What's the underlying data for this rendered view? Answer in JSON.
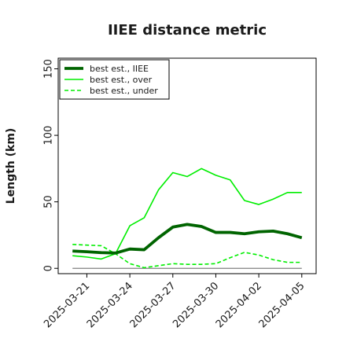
{
  "chart_data": {
    "type": "line",
    "title": "IIEE distance metric",
    "xlabel": "",
    "ylabel": "Length (km)",
    "ylim": [
      -4,
      158
    ],
    "xlim": [
      "2025-03-19",
      "2025-04-06"
    ],
    "x_ticks": [
      "2025-03-21",
      "2025-03-24",
      "2025-03-27",
      "2025-03-30",
      "2025-04-02",
      "2025-04-05"
    ],
    "y_ticks": [
      0,
      50,
      100,
      150
    ],
    "grid": false,
    "legend_position": "top-left",
    "x": [
      "2025-03-20",
      "2025-03-21",
      "2025-03-22",
      "2025-03-23",
      "2025-03-24",
      "2025-03-25",
      "2025-03-26",
      "2025-03-27",
      "2025-03-28",
      "2025-03-29",
      "2025-03-30",
      "2025-03-31",
      "2025-04-01",
      "2025-04-02",
      "2025-04-03",
      "2025-04-04",
      "2025-04-05"
    ],
    "series": [
      {
        "name": "best est., IIEE",
        "color": "#006400",
        "style": "solid",
        "width": "thick",
        "values": [
          13,
          12.5,
          11.8,
          11.5,
          14.5,
          14,
          23,
          31,
          33,
          31.5,
          27,
          27,
          26,
          27.5,
          28,
          26,
          23
        ]
      },
      {
        "name": "best est., over",
        "color": "#00ee00",
        "style": "solid",
        "width": "thin",
        "values": [
          9.5,
          8.5,
          7,
          11,
          32,
          38,
          59,
          72,
          69,
          75,
          70,
          66.5,
          51,
          48,
          52,
          57,
          57
        ]
      },
      {
        "name": "best est., under",
        "color": "#00ee00",
        "style": "dashed",
        "width": "thin",
        "values": [
          18,
          17.5,
          17,
          11,
          3.5,
          0.5,
          2,
          3.5,
          3,
          3,
          3.5,
          8,
          12,
          10,
          6.5,
          4.5,
          4.5
        ]
      }
    ],
    "reference_line": {
      "y": 0,
      "color": "#808080"
    }
  }
}
